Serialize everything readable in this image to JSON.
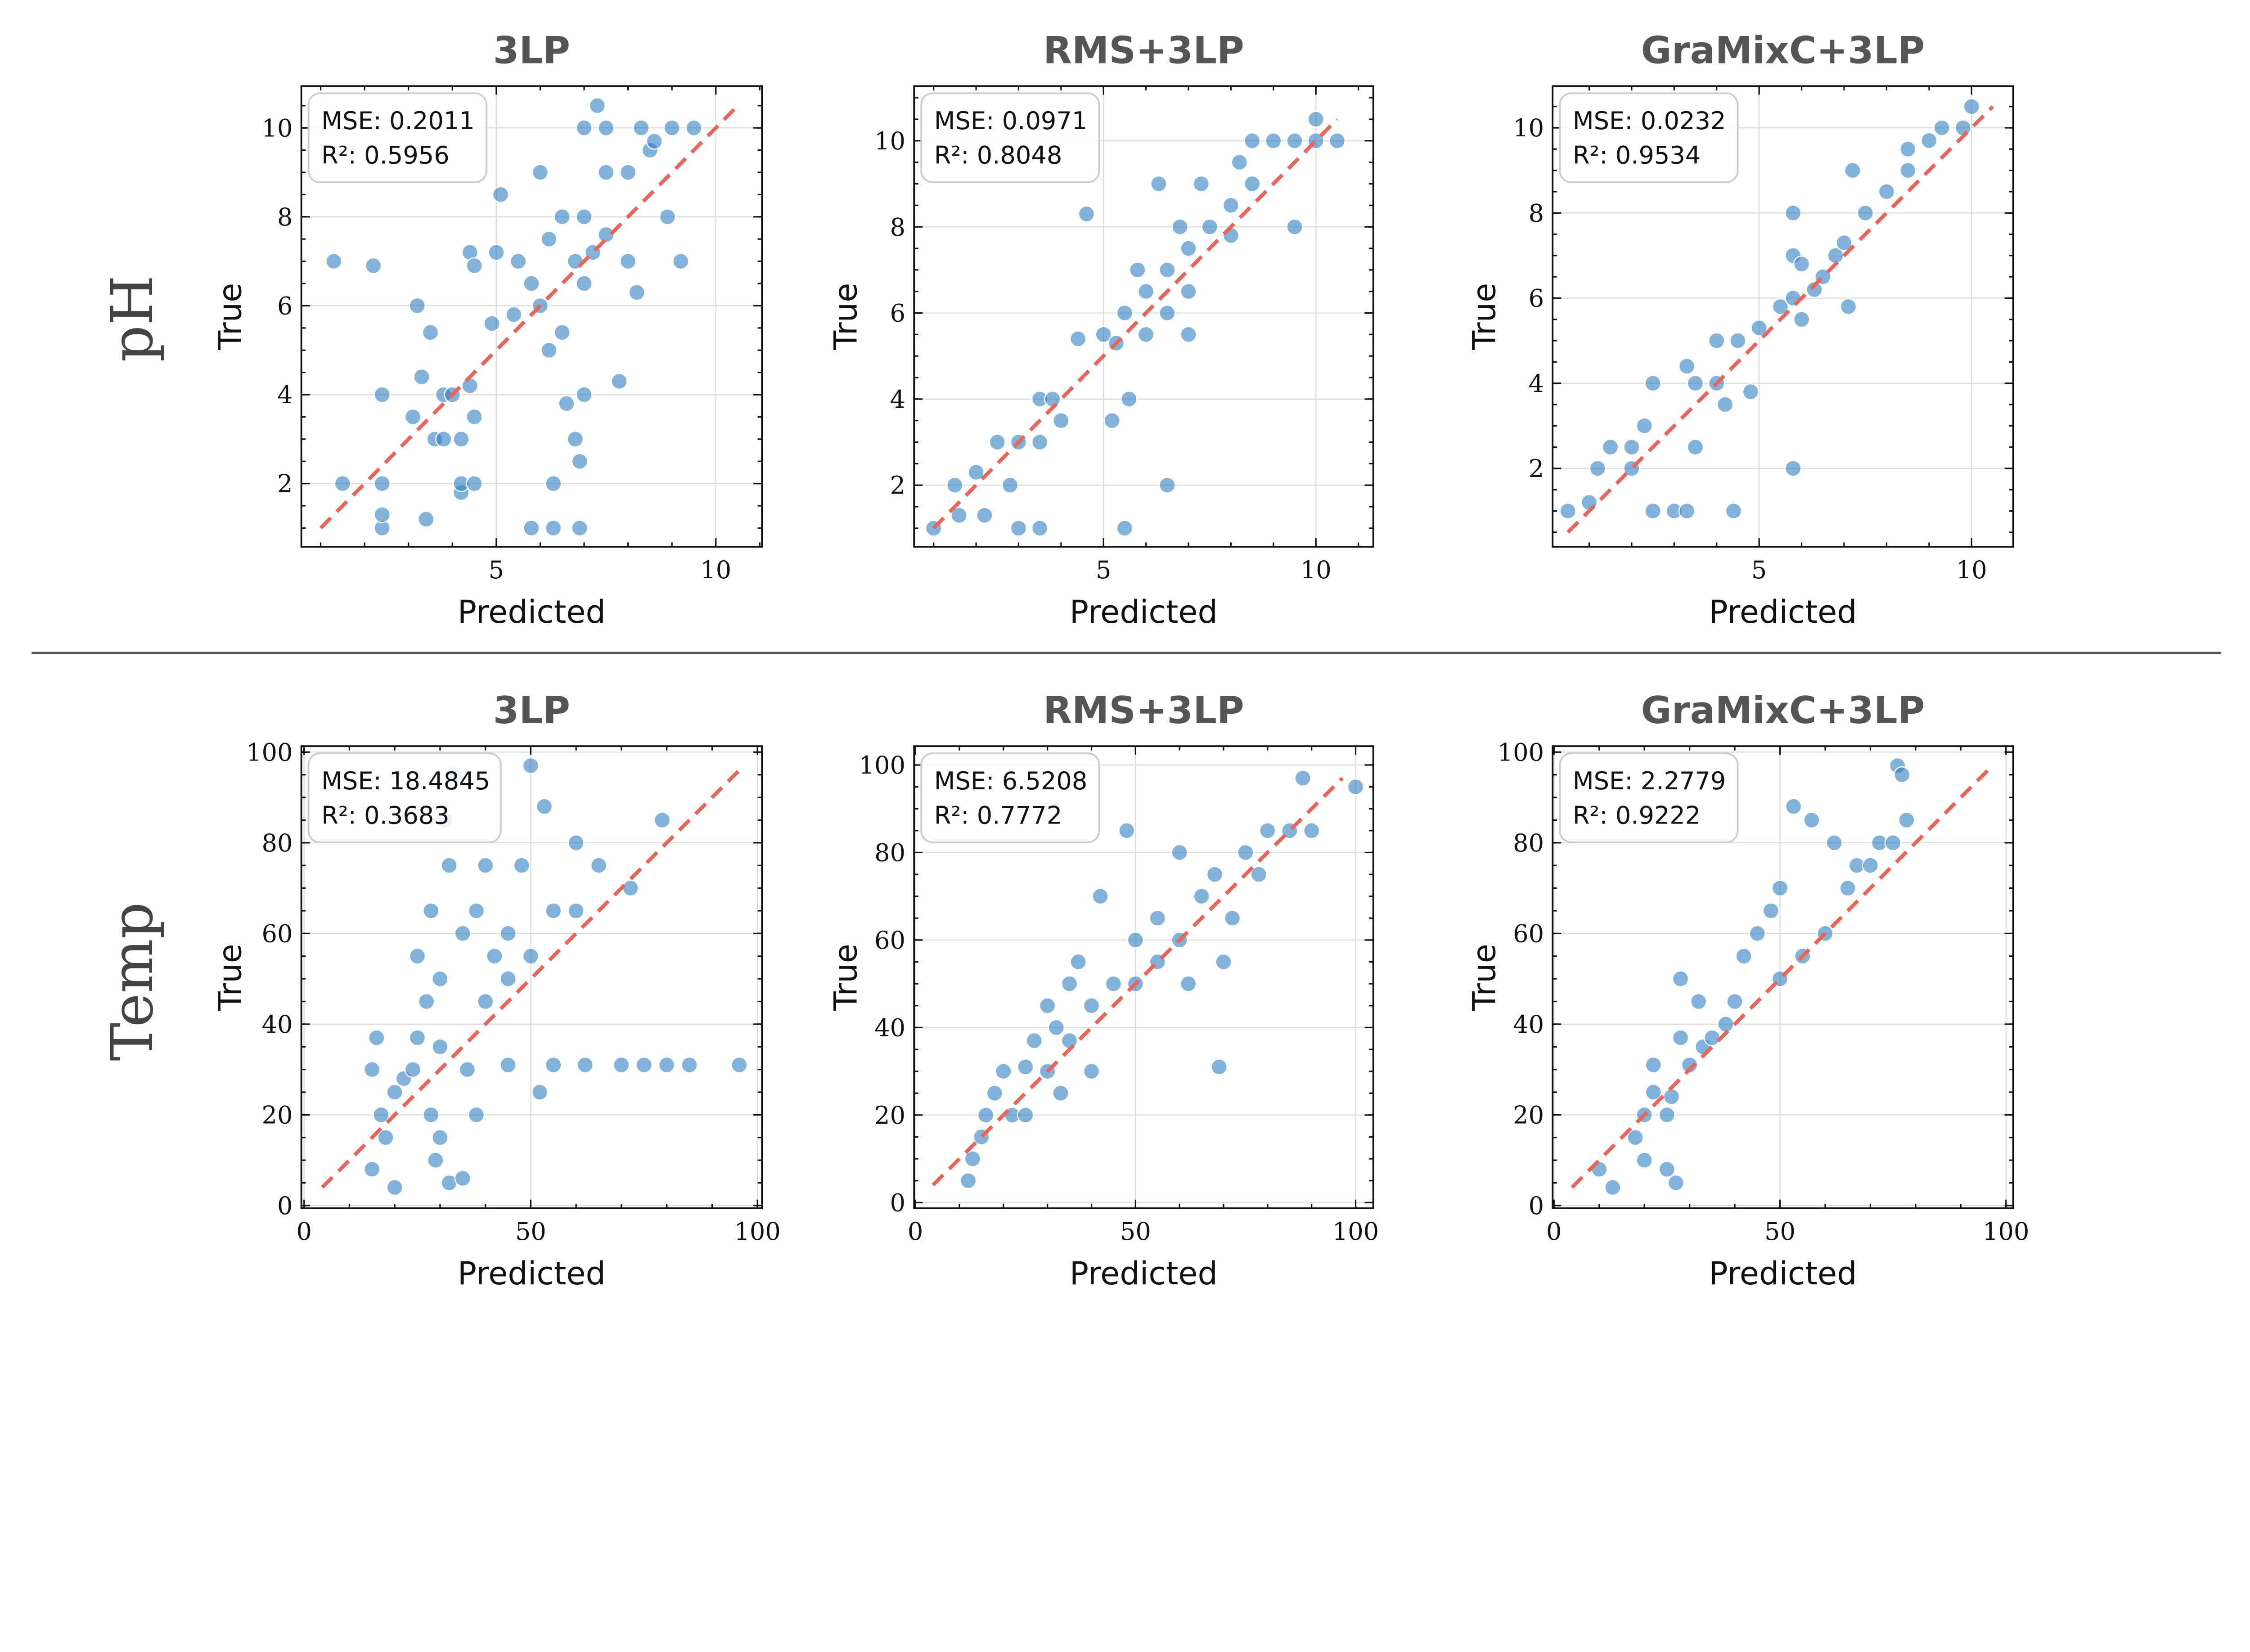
{
  "rows": [
    {
      "label": "pH"
    },
    {
      "label": "Temp"
    }
  ],
  "colors": {
    "point": "#2f7fc1",
    "identity_line": "#e8655a",
    "grid": "#dddddd",
    "separator": "#555555"
  },
  "chart_data": [
    {
      "type": "scatter",
      "row": 0,
      "title": "3LP",
      "xlabel": "Predicted",
      "ylabel": "True",
      "xlim": [
        0.56,
        11.05
      ],
      "ylim": [
        0.58,
        10.94
      ],
      "xticks": [
        5,
        10
      ],
      "yticks": [
        2,
        4,
        6,
        8,
        10
      ],
      "xminor": 1,
      "yminor": 0.5,
      "grid": true,
      "legend_position": "top-left",
      "metrics": {
        "mse": "MSE: 0.2011",
        "r2": "R²:  0.5956"
      },
      "identity": [
        1,
        10.5
      ],
      "points": [
        [
          1.3,
          7
        ],
        [
          2.2,
          6.9
        ],
        [
          1.5,
          2
        ],
        [
          2.4,
          2
        ],
        [
          2.4,
          1
        ],
        [
          2.4,
          1.3
        ],
        [
          2.4,
          4
        ],
        [
          3.2,
          6
        ],
        [
          3.5,
          5.4
        ],
        [
          3.3,
          4.4
        ],
        [
          3.8,
          4
        ],
        [
          4,
          4
        ],
        [
          3.6,
          3
        ],
        [
          3.8,
          3
        ],
        [
          4.2,
          3
        ],
        [
          3.1,
          3.5
        ],
        [
          4.5,
          3.5
        ],
        [
          4.4,
          4.2
        ],
        [
          4.2,
          1.8
        ],
        [
          4.2,
          2
        ],
        [
          4.5,
          2
        ],
        [
          3.4,
          1.2
        ],
        [
          5,
          7.2
        ],
        [
          4.4,
          7.2
        ],
        [
          4.5,
          6.9
        ],
        [
          5.1,
          8.5
        ],
        [
          4.9,
          5.6
        ],
        [
          5.5,
          7
        ],
        [
          5.8,
          6.5
        ],
        [
          6,
          6
        ],
        [
          6.2,
          7.5
        ],
        [
          6.5,
          8
        ],
        [
          6.5,
          5.4
        ],
        [
          6.8,
          7
        ],
        [
          7,
          6.5
        ],
        [
          7.2,
          7.2
        ],
        [
          6.2,
          5
        ],
        [
          7.5,
          7.6
        ],
        [
          7,
          8
        ],
        [
          7.5,
          9
        ],
        [
          7,
          10
        ],
        [
          7.5,
          10
        ],
        [
          8.3,
          10
        ],
        [
          8.5,
          9.5
        ],
        [
          9,
          10
        ],
        [
          9.5,
          10
        ],
        [
          9.2,
          7
        ],
        [
          8.9,
          8
        ],
        [
          8,
          7
        ],
        [
          8.2,
          6.3
        ],
        [
          7.8,
          4.3
        ],
        [
          7,
          4
        ],
        [
          6.6,
          3.8
        ],
        [
          6.8,
          3
        ],
        [
          6.9,
          2.5
        ],
        [
          6.3,
          2
        ],
        [
          5.8,
          1
        ],
        [
          6.3,
          1
        ],
        [
          6.9,
          1
        ],
        [
          7.3,
          10.5
        ],
        [
          5.4,
          5.8
        ],
        [
          8,
          9
        ],
        [
          6,
          9
        ],
        [
          8.6,
          9.7
        ]
      ]
    },
    {
      "type": "scatter",
      "row": 0,
      "title": "RMS+3LP",
      "xlabel": "Predicted",
      "ylabel": "True",
      "xlim": [
        0.54,
        11.35
      ],
      "ylim": [
        0.57,
        11.27
      ],
      "xticks": [
        5,
        10
      ],
      "yticks": [
        2,
        4,
        6,
        8,
        10
      ],
      "xminor": 1,
      "yminor": 0.5,
      "grid": true,
      "legend_position": "top-left",
      "metrics": {
        "mse": "MSE: 0.0971",
        "r2": "R²:  0.8048"
      },
      "identity": [
        1,
        10.5
      ],
      "points": [
        [
          1,
          1
        ],
        [
          1.5,
          2
        ],
        [
          1.6,
          1.3
        ],
        [
          2,
          2.3
        ],
        [
          2.2,
          1.3
        ],
        [
          2.5,
          3
        ],
        [
          2.8,
          2
        ],
        [
          3,
          1
        ],
        [
          3.5,
          1
        ],
        [
          3,
          3
        ],
        [
          3.5,
          3
        ],
        [
          3.5,
          4
        ],
        [
          3.8,
          4
        ],
        [
          4,
          3.5
        ],
        [
          4.4,
          5.4
        ],
        [
          4.6,
          8.3
        ],
        [
          5,
          5.5
        ],
        [
          5.2,
          3.5
        ],
        [
          5.5,
          6
        ],
        [
          5.6,
          4
        ],
        [
          5.5,
          1
        ],
        [
          5.8,
          7
        ],
        [
          6,
          6.5
        ],
        [
          6,
          5.5
        ],
        [
          6.5,
          7
        ],
        [
          6.5,
          6
        ],
        [
          6.5,
          2
        ],
        [
          6.8,
          8
        ],
        [
          7,
          7.5
        ],
        [
          7,
          6.5
        ],
        [
          7.3,
          9
        ],
        [
          7.5,
          8
        ],
        [
          8,
          8.5
        ],
        [
          8.5,
          9
        ],
        [
          8.2,
          9.5
        ],
        [
          8.5,
          10
        ],
        [
          9,
          10
        ],
        [
          9.5,
          10
        ],
        [
          10,
          10
        ],
        [
          10.5,
          10
        ],
        [
          10,
          10.5
        ],
        [
          9.5,
          8
        ],
        [
          7,
          5.5
        ],
        [
          6.3,
          9
        ],
        [
          8,
          7.8
        ],
        [
          5.3,
          5.3
        ]
      ]
    },
    {
      "type": "scatter",
      "row": 0,
      "title": "GraMixC+3LP",
      "xlabel": "Predicted",
      "ylabel": "True",
      "xlim": [
        0.14,
        10.98
      ],
      "ylim": [
        0.16,
        10.98
      ],
      "xticks": [
        5,
        10
      ],
      "yticks": [
        2,
        4,
        6,
        8,
        10
      ],
      "xminor": 1,
      "yminor": 0.5,
      "grid": true,
      "legend_position": "top-left",
      "metrics": {
        "mse": "MSE: 0.0232",
        "r2": "R²:  0.9534"
      },
      "identity": [
        0.5,
        10.5
      ],
      "points": [
        [
          0.5,
          1
        ],
        [
          1,
          1.2
        ],
        [
          1.2,
          2
        ],
        [
          1.5,
          2.5
        ],
        [
          2,
          2
        ],
        [
          2,
          2.5
        ],
        [
          2.3,
          3
        ],
        [
          2.5,
          4
        ],
        [
          2.5,
          1
        ],
        [
          3,
          1
        ],
        [
          3.3,
          1
        ],
        [
          4.4,
          1
        ],
        [
          3.5,
          2.5
        ],
        [
          3.3,
          4.4
        ],
        [
          3.5,
          4
        ],
        [
          4,
          4
        ],
        [
          4.2,
          3.5
        ],
        [
          4.8,
          3.8
        ],
        [
          4,
          5
        ],
        [
          4.5,
          5
        ],
        [
          5,
          5.3
        ],
        [
          5.5,
          5.8
        ],
        [
          5.8,
          6
        ],
        [
          5.8,
          8
        ],
        [
          5.8,
          7
        ],
        [
          5.8,
          2
        ],
        [
          6,
          5.5
        ],
        [
          6.3,
          6.2
        ],
        [
          6.5,
          6.5
        ],
        [
          6.8,
          7
        ],
        [
          7,
          7.3
        ],
        [
          7.1,
          5.8
        ],
        [
          7.2,
          9
        ],
        [
          7.5,
          8
        ],
        [
          8,
          8.5
        ],
        [
          8.5,
          9
        ],
        [
          8.5,
          9.5
        ],
        [
          9,
          9.7
        ],
        [
          9.3,
          10
        ],
        [
          10,
          10.5
        ],
        [
          9.8,
          10
        ],
        [
          6,
          6.8
        ]
      ]
    },
    {
      "type": "scatter",
      "row": 1,
      "title": "3LP",
      "xlabel": "Predicted",
      "ylabel": "True",
      "xlim": [
        -0.6,
        101
      ],
      "ylim": [
        -0.6,
        101.3
      ],
      "xticks": [
        0,
        50,
        100
      ],
      "yticks": [
        0,
        20,
        40,
        60,
        80,
        100
      ],
      "xminor": 10,
      "yminor": 5,
      "grid": true,
      "legend_position": "top-left",
      "metrics": {
        "mse": "MSE: 18.4845",
        "r2": "R²:  0.3683"
      },
      "identity": [
        4,
        97
      ],
      "points": [
        [
          15,
          30
        ],
        [
          16,
          37
        ],
        [
          17,
          20
        ],
        [
          15,
          8
        ],
        [
          18,
          15
        ],
        [
          20,
          4
        ],
        [
          20,
          25
        ],
        [
          22,
          28
        ],
        [
          24,
          30
        ],
        [
          25,
          37
        ],
        [
          25,
          55
        ],
        [
          27,
          45
        ],
        [
          28,
          20
        ],
        [
          28,
          65
        ],
        [
          29,
          10
        ],
        [
          30,
          50
        ],
        [
          30,
          35
        ],
        [
          31,
          85
        ],
        [
          32,
          5
        ],
        [
          32,
          75
        ],
        [
          33,
          95
        ],
        [
          35,
          6
        ],
        [
          35,
          60
        ],
        [
          36,
          30
        ],
        [
          38,
          65
        ],
        [
          40,
          75
        ],
        [
          40,
          45
        ],
        [
          42,
          55
        ],
        [
          45,
          60
        ],
        [
          45,
          31
        ],
        [
          48,
          75
        ],
        [
          50,
          55
        ],
        [
          50,
          97
        ],
        [
          52,
          25
        ],
        [
          53,
          88
        ],
        [
          55,
          65
        ],
        [
          55,
          31
        ],
        [
          60,
          80
        ],
        [
          60,
          65
        ],
        [
          62,
          31
        ],
        [
          65,
          75
        ],
        [
          70,
          31
        ],
        [
          72,
          70
        ],
        [
          75,
          31
        ],
        [
          79,
          85
        ],
        [
          80,
          31
        ],
        [
          85,
          31
        ],
        [
          96,
          31
        ],
        [
          38,
          20
        ],
        [
          30,
          15
        ],
        [
          45,
          50
        ]
      ]
    },
    {
      "type": "scatter",
      "row": 1,
      "title": "RMS+3LP",
      "xlabel": "Predicted",
      "ylabel": "True",
      "xlim": [
        -0.3,
        104
      ],
      "ylim": [
        -1.3,
        104.3
      ],
      "xticks": [
        0,
        50,
        100
      ],
      "yticks": [
        0,
        20,
        40,
        60,
        80,
        100
      ],
      "xminor": 10,
      "yminor": 5,
      "grid": true,
      "legend_position": "top-left",
      "metrics": {
        "mse": "MSE: 6.5208",
        "r2": "R²:  0.7772"
      },
      "identity": [
        4,
        97
      ],
      "points": [
        [
          12,
          5
        ],
        [
          13,
          10
        ],
        [
          15,
          15
        ],
        [
          16,
          20
        ],
        [
          18,
          25
        ],
        [
          20,
          30
        ],
        [
          22,
          20
        ],
        [
          25,
          31
        ],
        [
          27,
          37
        ],
        [
          30,
          30
        ],
        [
          30,
          45
        ],
        [
          32,
          40
        ],
        [
          35,
          50
        ],
        [
          35,
          37
        ],
        [
          37,
          55
        ],
        [
          40,
          45
        ],
        [
          40,
          30
        ],
        [
          42,
          70
        ],
        [
          45,
          50
        ],
        [
          48,
          85
        ],
        [
          50,
          60
        ],
        [
          50,
          50
        ],
        [
          55,
          55
        ],
        [
          55,
          65
        ],
        [
          60,
          60
        ],
        [
          60,
          80
        ],
        [
          62,
          50
        ],
        [
          65,
          70
        ],
        [
          68,
          75
        ],
        [
          69,
          31
        ],
        [
          70,
          55
        ],
        [
          72,
          65
        ],
        [
          75,
          80
        ],
        [
          78,
          75
        ],
        [
          80,
          85
        ],
        [
          85,
          85
        ],
        [
          88,
          97
        ],
        [
          90,
          85
        ],
        [
          100,
          95
        ],
        [
          25,
          20
        ],
        [
          33,
          25
        ]
      ]
    },
    {
      "type": "scatter",
      "row": 1,
      "title": "GraMixC+3LP",
      "xlabel": "Predicted",
      "ylabel": "True",
      "xlim": [
        -0.3,
        101.6
      ],
      "ylim": [
        -0.6,
        101.3
      ],
      "xticks": [
        0,
        50,
        100
      ],
      "yticks": [
        0,
        20,
        40,
        60,
        80,
        100
      ],
      "xminor": 10,
      "yminor": 5,
      "grid": true,
      "legend_position": "top-left",
      "metrics": {
        "mse": "MSE: 2.2779",
        "r2": "R²:  0.9222"
      },
      "identity": [
        4,
        97
      ],
      "points": [
        [
          10,
          8
        ],
        [
          13,
          4
        ],
        [
          18,
          15
        ],
        [
          20,
          20
        ],
        [
          20,
          10
        ],
        [
          22,
          25
        ],
        [
          22,
          31
        ],
        [
          25,
          20
        ],
        [
          25,
          8
        ],
        [
          27,
          5
        ],
        [
          28,
          37
        ],
        [
          28,
          50
        ],
        [
          30,
          31
        ],
        [
          32,
          45
        ],
        [
          33,
          35
        ],
        [
          35,
          37
        ],
        [
          38,
          40
        ],
        [
          40,
          45
        ],
        [
          42,
          55
        ],
        [
          45,
          60
        ],
        [
          48,
          65
        ],
        [
          50,
          50
        ],
        [
          50,
          70
        ],
        [
          53,
          88
        ],
        [
          55,
          55
        ],
        [
          57,
          85
        ],
        [
          60,
          60
        ],
        [
          62,
          80
        ],
        [
          65,
          70
        ],
        [
          67,
          75
        ],
        [
          70,
          75
        ],
        [
          72,
          80
        ],
        [
          75,
          80
        ],
        [
          76,
          97
        ],
        [
          77,
          95
        ],
        [
          78,
          85
        ],
        [
          26,
          24
        ]
      ]
    }
  ]
}
